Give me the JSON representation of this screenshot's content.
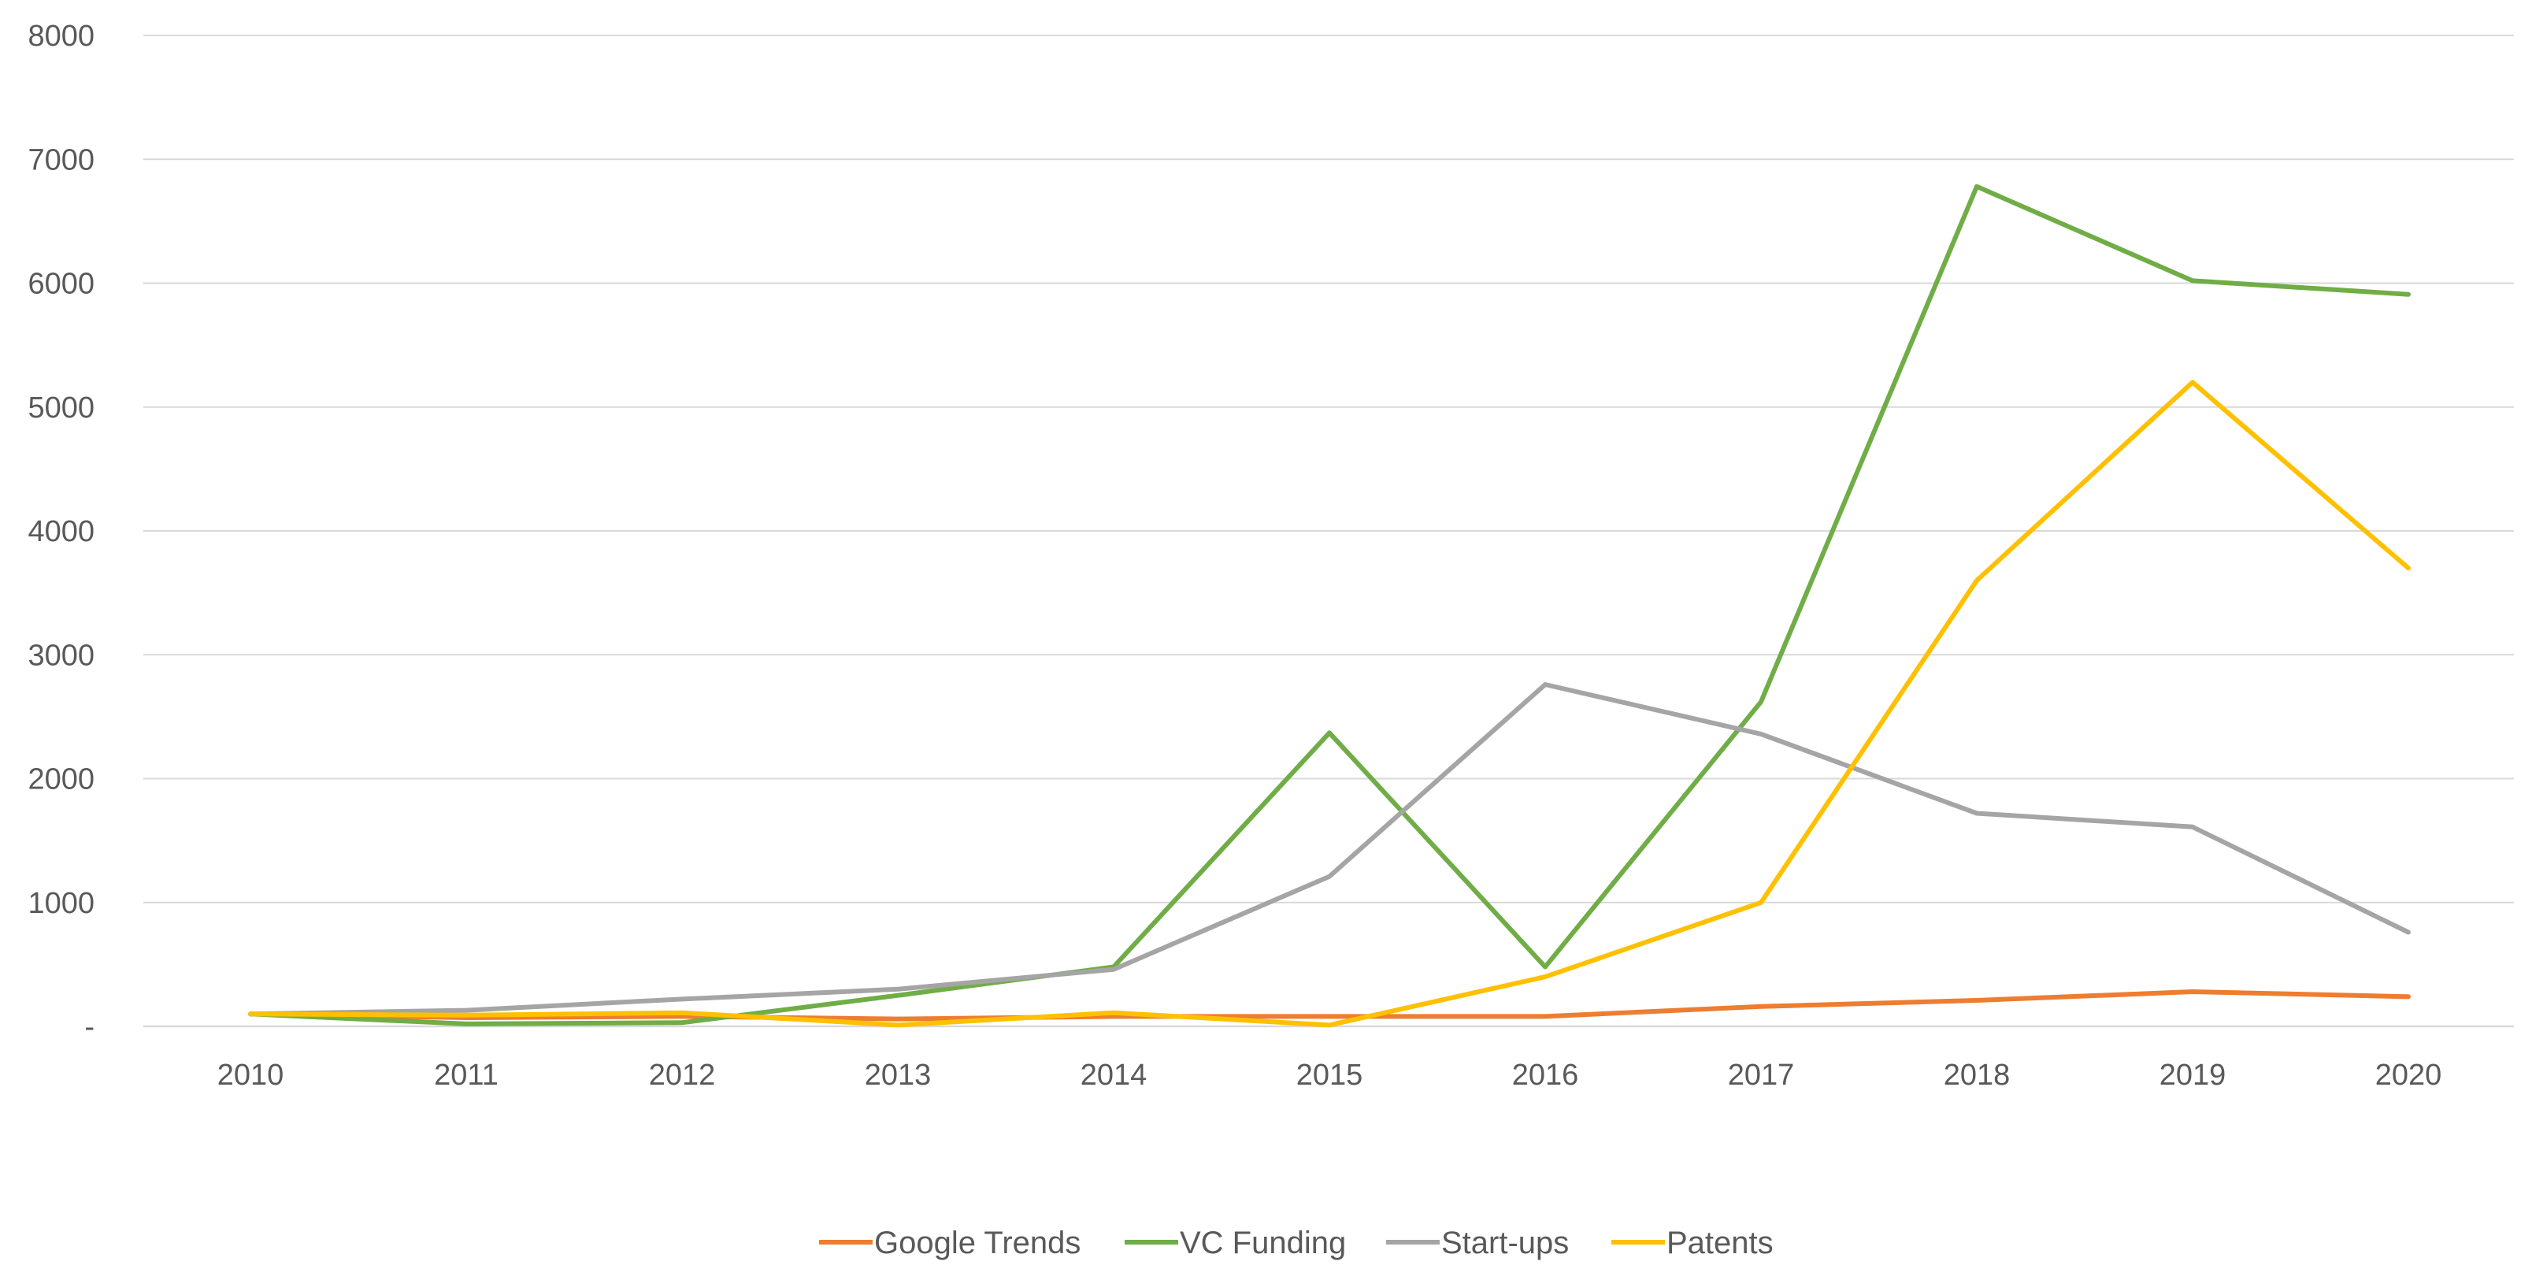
{
  "chart_data": {
    "type": "line",
    "title": "",
    "xlabel": "",
    "ylabel": "",
    "categories": [
      "2010",
      "2011",
      "2012",
      "2013",
      "2014",
      "2015",
      "2016",
      "2017",
      "2018",
      "2019",
      "2020"
    ],
    "ylim": [
      0,
      8000
    ],
    "y_ticks": [
      0,
      1000,
      2000,
      3000,
      4000,
      5000,
      6000,
      7000,
      8000
    ],
    "y_tick_labels": [
      "-",
      "1000",
      "2000",
      "3000",
      "4000",
      "5000",
      "6000",
      "7000",
      "8000"
    ],
    "grid": true,
    "legend_position": "bottom",
    "series": [
      {
        "name": "Google Trends",
        "color": "#ED7D31",
        "values": [
          100,
          70,
          80,
          60,
          80,
          80,
          80,
          160,
          210,
          280,
          240
        ]
      },
      {
        "name": "VC Funding",
        "color": "#70AD47",
        "values": [
          100,
          20,
          30,
          250,
          480,
          2370,
          480,
          2620,
          6780,
          6020,
          5910
        ]
      },
      {
        "name": "Start-ups",
        "color": "#A5A5A5",
        "values": [
          100,
          130,
          220,
          300,
          460,
          1210,
          2760,
          2360,
          1720,
          1610,
          760
        ]
      },
      {
        "name": "Patents",
        "color": "#FFC000",
        "values": [
          100,
          90,
          110,
          10,
          110,
          10,
          400,
          1000,
          3600,
          5200,
          3700
        ]
      }
    ]
  }
}
